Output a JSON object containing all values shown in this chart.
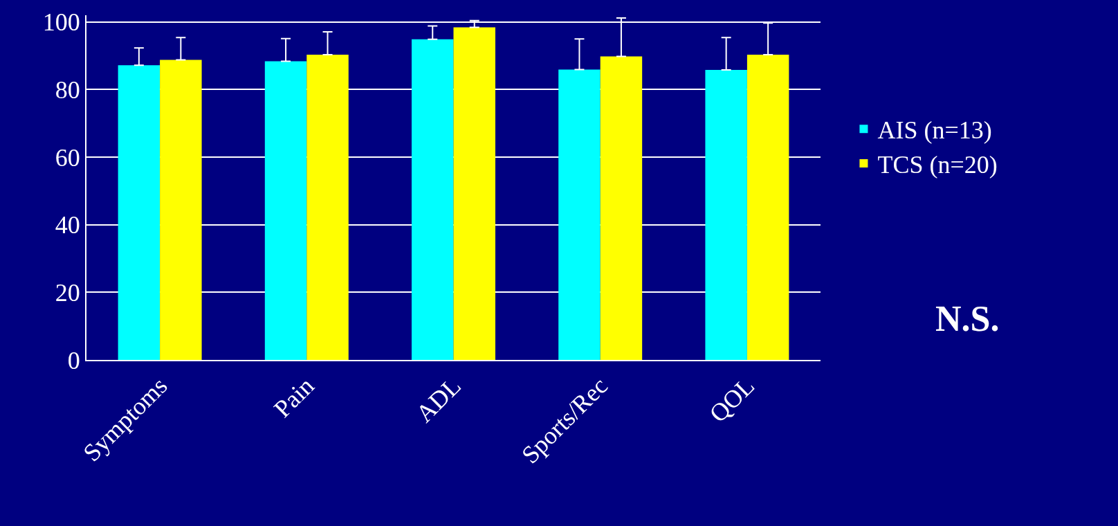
{
  "chart_data": {
    "type": "bar",
    "categories": [
      "Symptoms",
      "Pain",
      "ADL",
      "Sports/Rec",
      "QOL"
    ],
    "series": [
      {
        "name": "AIS (n=13)",
        "color": "#00ffff",
        "values": [
          87.2,
          88.4,
          94.9,
          85.9,
          85.8
        ],
        "errors": [
          [
            87.2,
            92.3
          ],
          [
            88.4,
            95.1
          ],
          [
            94.9,
            98.8
          ],
          [
            85.9,
            95.0
          ],
          [
            85.8,
            95.4
          ]
        ]
      },
      {
        "name": "TCS (n=20)",
        "color": "#ffff00",
        "values": [
          88.8,
          90.3,
          98.4,
          89.8,
          90.3
        ],
        "errors": [
          [
            88.8,
            95.4
          ],
          [
            90.3,
            97.1
          ],
          [
            98.4,
            100.4
          ],
          [
            89.8,
            101.2
          ],
          [
            90.3,
            99.7
          ]
        ]
      }
    ],
    "ylim": [
      0,
      102
    ],
    "yticks": [
      0,
      20,
      40,
      60,
      80,
      100
    ],
    "grid": "y",
    "legend": "right",
    "annotations": [
      "N.S."
    ]
  }
}
